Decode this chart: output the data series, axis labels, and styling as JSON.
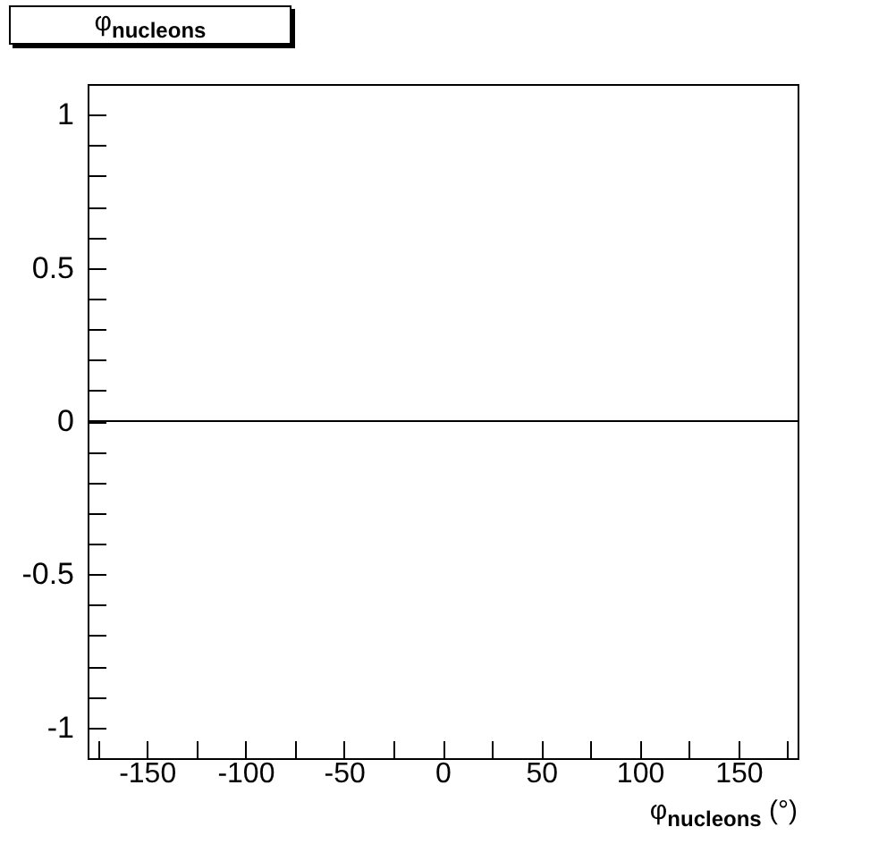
{
  "chart_data": {
    "type": "histogram",
    "title": "φ$_{nucleons}$",
    "xlabel": "φ$_{nucleons}$ (°)",
    "color": "#000000",
    "bins": [
      -180,
      180
    ],
    "values": [
      0
    ],
    "xlim": [
      -180,
      180
    ],
    "xticks": [
      {
        "value": -175,
        "label": null
      },
      -150,
      {
        "value": -125,
        "label": null
      },
      -100,
      {
        "value": -75,
        "label": null
      },
      -50,
      {
        "value": -25,
        "label": null
      },
      0,
      {
        "value": 25,
        "label": null
      },
      50,
      {
        "value": 75,
        "label": null
      },
      100,
      {
        "value": 125,
        "label": null
      },
      150,
      {
        "value": 175,
        "label": null
      }
    ],
    "ylim": [
      -1.1,
      1.1
    ],
    "yticks": [
      {
        "value": -1.1,
        "label": null
      },
      -1,
      {
        "value": -0.9,
        "label": null
      },
      {
        "value": -0.8,
        "label": null
      },
      {
        "value": -0.7,
        "label": null
      },
      {
        "value": -0.6,
        "label": null
      },
      -0.5,
      {
        "value": -0.4,
        "label": null
      },
      {
        "value": -0.3,
        "label": null
      },
      {
        "value": -0.2,
        "label": null
      },
      {
        "value": -0.1,
        "label": null
      },
      0,
      {
        "value": 0.1,
        "label": null
      },
      {
        "value": 0.2,
        "label": null
      },
      {
        "value": 0.3,
        "label": null
      },
      {
        "value": 0.4,
        "label": null
      },
      0.5,
      {
        "value": 0.6,
        "label": null
      },
      {
        "value": 0.7,
        "label": null
      },
      {
        "value": 0.8,
        "label": null
      },
      {
        "value": 0.9,
        "label": null
      },
      1,
      {
        "value": 1.1,
        "label": null
      }
    ]
  }
}
